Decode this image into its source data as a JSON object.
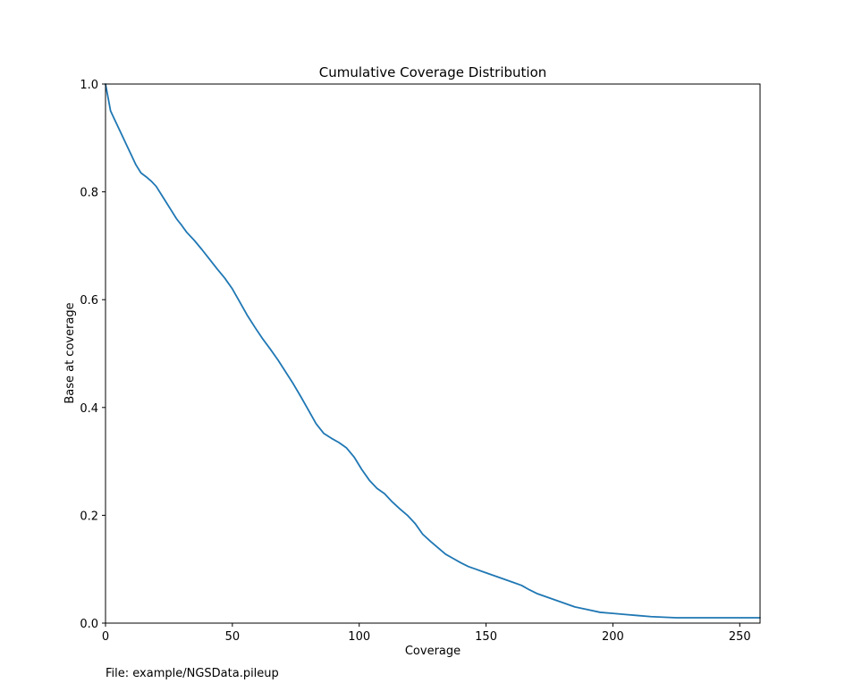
{
  "figure": {
    "footer": "File: example/NGSData.pileup"
  },
  "chart_data": {
    "type": "line",
    "title": "Cumulative Coverage Distribution",
    "xlabel": "Coverage",
    "ylabel": "Base at coverage",
    "xlim": [
      0,
      258
    ],
    "ylim": [
      0,
      1.0
    ],
    "x_ticks": [
      0,
      50,
      100,
      150,
      200,
      250
    ],
    "x_tick_labels": [
      "0",
      "50",
      "100",
      "150",
      "200",
      "250"
    ],
    "y_ticks": [
      0.0,
      0.2,
      0.4,
      0.6,
      0.8,
      1.0
    ],
    "y_tick_labels": [
      "0.0",
      "0.2",
      "0.4",
      "0.6",
      "0.8",
      "1.0"
    ],
    "grid": false,
    "colors": {
      "line": "#1f77b4",
      "axes": "#000000"
    },
    "series": [
      {
        "x": [
          0,
          1,
          2,
          4,
          6,
          8,
          10,
          12,
          14,
          16,
          18,
          20,
          22,
          24,
          26,
          28,
          30,
          32,
          35,
          38,
          41,
          44,
          47,
          50,
          53,
          56,
          59,
          62,
          65,
          68,
          71,
          74,
          77,
          80,
          83,
          86,
          89,
          92,
          95,
          98,
          101,
          104,
          107,
          110,
          113,
          116,
          119,
          122,
          125,
          128,
          131,
          134,
          137,
          140,
          143,
          146,
          149,
          152,
          155,
          158,
          161,
          164,
          167,
          170,
          173,
          176,
          179,
          182,
          185,
          190,
          195,
          200,
          205,
          210,
          215,
          220,
          225,
          230,
          240,
          250,
          258
        ],
        "y": [
          1.0,
          0.975,
          0.95,
          0.93,
          0.91,
          0.89,
          0.87,
          0.85,
          0.835,
          0.828,
          0.82,
          0.81,
          0.795,
          0.78,
          0.765,
          0.75,
          0.738,
          0.725,
          0.71,
          0.693,
          0.675,
          0.657,
          0.64,
          0.62,
          0.595,
          0.57,
          0.548,
          0.527,
          0.508,
          0.488,
          0.466,
          0.444,
          0.42,
          0.395,
          0.37,
          0.352,
          0.343,
          0.335,
          0.325,
          0.308,
          0.285,
          0.265,
          0.25,
          0.24,
          0.225,
          0.212,
          0.2,
          0.185,
          0.165,
          0.152,
          0.14,
          0.128,
          0.12,
          0.112,
          0.105,
          0.1,
          0.095,
          0.09,
          0.085,
          0.08,
          0.075,
          0.07,
          0.062,
          0.055,
          0.05,
          0.045,
          0.04,
          0.035,
          0.03,
          0.025,
          0.02,
          0.018,
          0.016,
          0.014,
          0.012,
          0.011,
          0.01,
          0.01,
          0.01,
          0.01,
          0.01
        ]
      }
    ]
  }
}
